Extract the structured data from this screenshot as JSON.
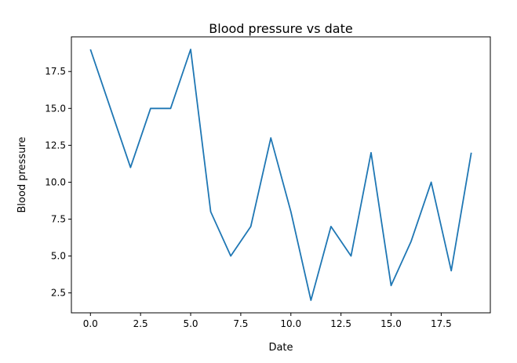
{
  "chart_data": {
    "type": "line",
    "title": "Blood pressure vs date",
    "xlabel": "Date",
    "ylabel": "Blood pressure",
    "xlim": [
      -0.95,
      19.95
    ],
    "ylim": [
      1.15,
      19.85
    ],
    "xticks": [
      0.0,
      2.5,
      5.0,
      7.5,
      10.0,
      12.5,
      15.0,
      17.5
    ],
    "xtick_labels": [
      "0.0",
      "2.5",
      "5.0",
      "7.5",
      "10.0",
      "12.5",
      "15.0",
      "17.5"
    ],
    "yticks": [
      2.5,
      5.0,
      7.5,
      10.0,
      12.5,
      15.0,
      17.5
    ],
    "ytick_labels": [
      "2.5",
      "5.0",
      "7.5",
      "10.0",
      "12.5",
      "15.0",
      "17.5"
    ],
    "grid": false,
    "line_color": "#1f77b4",
    "x": [
      0,
      1,
      2,
      3,
      4,
      5,
      6,
      7,
      8,
      9,
      10,
      11,
      12,
      13,
      14,
      15,
      16,
      17,
      18,
      19
    ],
    "series": [
      {
        "values": [
          19,
          15,
          11,
          15,
          15,
          19,
          8,
          5,
          7,
          13,
          8,
          2,
          7,
          5,
          12,
          3,
          6,
          10,
          4,
          12
        ]
      }
    ]
  }
}
